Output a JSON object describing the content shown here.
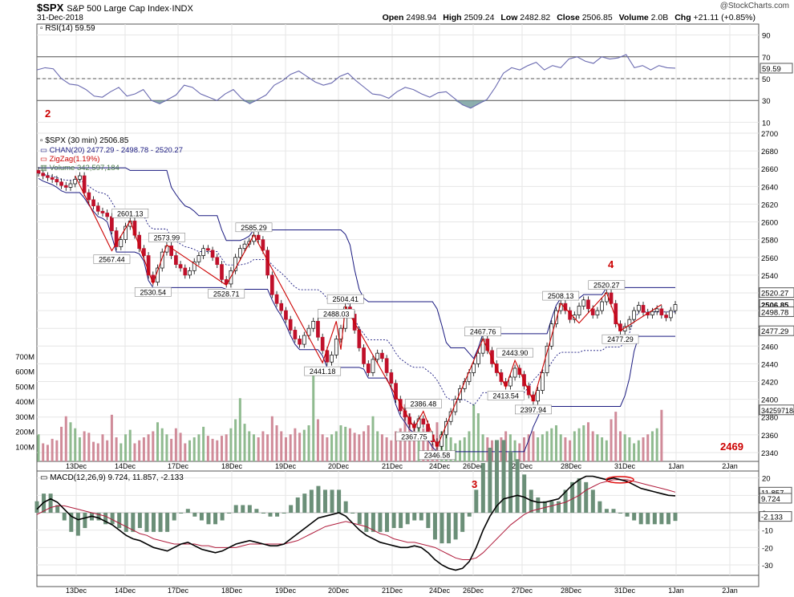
{
  "header": {
    "symbol": "$SPX",
    "name": "S&P 500 Large Cap Index",
    "exchange": "INDX",
    "date": "31-Dec-2018",
    "watermark": "@StockCharts.com",
    "open_label": "Open",
    "open": "2498.94",
    "high_label": "High",
    "high": "2509.24",
    "low_label": "Low",
    "low": "2482.82",
    "close_label": "Close",
    "close": "2506.85",
    "volume_label": "Volume",
    "volume": "2.0B",
    "chg_label": "Chg",
    "chg": "+21.11 (+0.85%)"
  },
  "annotations": [
    "2",
    "4",
    "2469",
    "3"
  ],
  "chart_data": [
    {
      "type": "line",
      "panel": "rsi",
      "legend": "RSI(14) 59.59",
      "ylim": [
        0,
        100
      ],
      "y_ticks": [
        10,
        30,
        50,
        70,
        90
      ],
      "reference_lines": [
        30,
        50,
        70
      ],
      "last_value": "59.59",
      "color": "#6a6ab0",
      "values": [
        58,
        60,
        59,
        50,
        45,
        44,
        40,
        34,
        33,
        38,
        42,
        34,
        36,
        40,
        30,
        27,
        31,
        35,
        44,
        42,
        36,
        33,
        30,
        36,
        40,
        32,
        27,
        31,
        35,
        44,
        48,
        54,
        57,
        52,
        47,
        44,
        46,
        52,
        55,
        48,
        42,
        36,
        35,
        32,
        38,
        42,
        40,
        36,
        33,
        37,
        38,
        32,
        26,
        23,
        27,
        31,
        42,
        55,
        60,
        58,
        62,
        65,
        58,
        62,
        60,
        68,
        70,
        66,
        64,
        70,
        68,
        69,
        72,
        60,
        62,
        58,
        62,
        60,
        59.59
      ]
    },
    {
      "type": "candlestick",
      "panel": "price",
      "legend": "$SPX (30 min) 2506.85",
      "ylim": [
        2330,
        2700
      ],
      "y_ticks": [
        2340,
        2360,
        2380,
        2400,
        2420,
        2440,
        2460,
        2480,
        2500,
        2520,
        2540,
        2560,
        2580,
        2600,
        2620,
        2640,
        2660,
        2680,
        2700
      ],
      "x_ticks": [
        "13Dec",
        "14Dec",
        "17Dec",
        "18Dec",
        "19Dec",
        "20Dec",
        "21Dec",
        "24Dec",
        "26Dec",
        "27Dec",
        "28Dec",
        "31Dec",
        "1Jan",
        "2Jan"
      ],
      "closes": [
        2655,
        2652,
        2650,
        2648,
        2645,
        2641,
        2639,
        2643,
        2648,
        2652,
        2633,
        2625,
        2618,
        2612,
        2610,
        2606,
        2590,
        2572,
        2580,
        2595,
        2601,
        2585,
        2570,
        2562,
        2540,
        2532,
        2548,
        2566,
        2573,
        2562,
        2552,
        2548,
        2540,
        2545,
        2555,
        2562,
        2570,
        2568,
        2560,
        2552,
        2535,
        2530,
        2545,
        2560,
        2570,
        2575,
        2578,
        2585,
        2580,
        2568,
        2540,
        2518,
        2508,
        2500,
        2490,
        2478,
        2468,
        2462,
        2472,
        2480,
        2488,
        2470,
        2455,
        2442,
        2450,
        2468,
        2480,
        2504,
        2496,
        2478,
        2458,
        2440,
        2430,
        2445,
        2452,
        2446,
        2430,
        2418,
        2400,
        2387,
        2380,
        2372,
        2368,
        2378,
        2372,
        2360,
        2352,
        2347,
        2360,
        2375,
        2386,
        2400,
        2412,
        2420,
        2430,
        2440,
        2452,
        2468,
        2455,
        2440,
        2430,
        2420,
        2415,
        2425,
        2435,
        2428,
        2415,
        2405,
        2398,
        2410,
        2430,
        2460,
        2485,
        2500,
        2508,
        2500,
        2490,
        2495,
        2505,
        2512,
        2502,
        2495,
        2500,
        2510,
        2520,
        2508,
        2485,
        2477,
        2482,
        2490,
        2500,
        2506,
        2498,
        2495,
        2499,
        2502,
        2495,
        2492,
        2500,
        2506.85
      ],
      "channel": {
        "legend": "CHAN(20) 2477.29 - 2498.78 - 2520.27",
        "upper_label": "2520.27",
        "mid_label": "2498.78",
        "lower_label": "2477.29",
        "color": "#1a1a80"
      },
      "zigzag": {
        "legend": "ZigZag(1.19%)",
        "color": "#cc0000",
        "pivots": [
          {
            "i": 8,
            "v": 2652,
            "label": ""
          },
          {
            "i": 16,
            "v": 2567.44,
            "label": "2567.44"
          },
          {
            "i": 20,
            "v": 2601.13,
            "label": "2601.13"
          },
          {
            "i": 25,
            "v": 2530.54,
            "label": "2530.54"
          },
          {
            "i": 28,
            "v": 2573.99,
            "label": "2573.99"
          },
          {
            "i": 41,
            "v": 2528.71,
            "label": "2528.71"
          },
          {
            "i": 47,
            "v": 2585.29,
            "label": "2585.29"
          },
          {
            "i": 62,
            "v": 2441.18,
            "label": "2441.18"
          },
          {
            "i": 65,
            "v": 2488.03,
            "label": "2488.03"
          },
          {
            "i": 66,
            "v": 2456,
            "label": ""
          },
          {
            "i": 67,
            "v": 2504.41,
            "label": "2504.41"
          },
          {
            "i": 82,
            "v": 2367.75,
            "label": "2367.75"
          },
          {
            "i": 84,
            "v": 2386.48,
            "label": "2386.48"
          },
          {
            "i": 87,
            "v": 2346.58,
            "label": "2346.58"
          },
          {
            "i": 97,
            "v": 2467.76,
            "label": "2467.76"
          },
          {
            "i": 102,
            "v": 2413.54,
            "label": "2413.54"
          },
          {
            "i": 104,
            "v": 2443.9,
            "label": "2443.90"
          },
          {
            "i": 108,
            "v": 2397.94,
            "label": "2397.94"
          },
          {
            "i": 114,
            "v": 2508.13,
            "label": "2508.13"
          },
          {
            "i": 118,
            "v": 2486,
            "label": ""
          },
          {
            "i": 124,
            "v": 2520.27,
            "label": "2520.27"
          },
          {
            "i": 127,
            "v": 2477.29,
            "label": "2477.29"
          },
          {
            "i": 136,
            "v": 2506.85,
            "label": ""
          }
        ]
      },
      "last_price_label": "2506.85"
    },
    {
      "type": "bar",
      "panel": "volume",
      "legend": "Volume 342,597,184",
      "y_ticks_labels": [
        "100M",
        "200M",
        "300M",
        "400M",
        "500M",
        "600M",
        "700M"
      ],
      "ylim": [
        0,
        800
      ],
      "last_label": "342597184",
      "values_m": [
        180,
        120,
        110,
        150,
        140,
        230,
        300,
        260,
        220,
        160,
        200,
        190,
        130,
        120,
        180,
        140,
        310,
        160,
        120,
        180,
        210,
        120,
        140,
        160,
        180,
        200,
        260,
        220,
        180,
        150,
        220,
        190,
        120,
        140,
        160,
        180,
        230,
        170,
        150,
        140,
        170,
        180,
        220,
        280,
        420,
        250,
        200,
        180,
        160,
        200,
        180,
        300,
        240,
        200,
        160,
        180,
        220,
        190,
        210,
        240,
        620,
        280,
        180,
        160,
        180,
        200,
        240,
        230,
        220,
        190,
        180,
        200,
        240,
        300,
        200,
        180,
        160,
        140,
        200,
        220,
        380,
        320,
        260,
        240,
        220,
        200,
        120,
        260,
        200,
        180,
        160,
        120,
        140,
        160,
        200,
        380,
        320,
        180,
        160,
        140,
        120,
        160,
        200,
        180,
        140,
        120,
        160,
        180,
        200,
        160,
        180,
        200,
        220,
        240,
        180,
        160,
        140,
        200,
        220,
        240,
        260,
        200,
        180,
        160,
        140,
        280,
        330,
        200,
        180,
        160,
        120,
        140,
        160,
        180,
        200,
        220,
        342.6
      ]
    },
    {
      "type": "line",
      "panel": "macd",
      "legend": "MACD(12,26,9) 9.724, 11.857, -2.133",
      "ylim": [
        -36,
        24
      ],
      "y_ticks": [
        -30,
        -20,
        -10,
        0,
        10,
        20
      ],
      "macd_label": "9.724",
      "signal_label": "11.857",
      "hist_label": "-2.133",
      "macd": [
        2,
        6,
        8,
        6,
        2,
        -2,
        -4,
        -3,
        -2,
        -3,
        -5,
        -7,
        -10,
        -13,
        -15,
        -16,
        -18,
        -20,
        -21,
        -22,
        -20,
        -18,
        -17,
        -19,
        -21,
        -22,
        -23,
        -22,
        -20,
        -18,
        -17,
        -16,
        -17,
        -18,
        -19,
        -19,
        -18,
        -15,
        -12,
        -9,
        -6,
        -3,
        -2,
        -1,
        0,
        -2,
        -6,
        -10,
        -13,
        -15,
        -17,
        -18,
        -19,
        -20,
        -20,
        -19,
        -20,
        -23,
        -27,
        -30,
        -32,
        -33,
        -32,
        -28,
        -20,
        -10,
        -2,
        4,
        8,
        9,
        10,
        9,
        7,
        6,
        6,
        7,
        8,
        12,
        16,
        19,
        21,
        21,
        20,
        19,
        20,
        19,
        18,
        16,
        14,
        13,
        12,
        11,
        10,
        9.724
      ],
      "signal": [
        -1,
        1,
        3,
        4,
        4,
        3,
        2,
        1,
        0,
        -1,
        -2,
        -4,
        -6,
        -8,
        -10,
        -12,
        -13,
        -15,
        -16,
        -17,
        -18,
        -18,
        -18,
        -18,
        -19,
        -19,
        -20,
        -20,
        -20,
        -20,
        -19,
        -18,
        -18,
        -18,
        -18,
        -18,
        -18,
        -17,
        -16,
        -14,
        -12,
        -10,
        -8,
        -7,
        -6,
        -5,
        -6,
        -7,
        -8,
        -10,
        -12,
        -13,
        -15,
        -16,
        -17,
        -17,
        -18,
        -19,
        -20,
        -22,
        -24,
        -26,
        -27,
        -27,
        -26,
        -23,
        -19,
        -15,
        -11,
        -7,
        -4,
        -1,
        1,
        2,
        3,
        4,
        5,
        6,
        8,
        10,
        13,
        15,
        17,
        18,
        19,
        19,
        19,
        18,
        17,
        16,
        15,
        14,
        13,
        11.857
      ]
    }
  ]
}
